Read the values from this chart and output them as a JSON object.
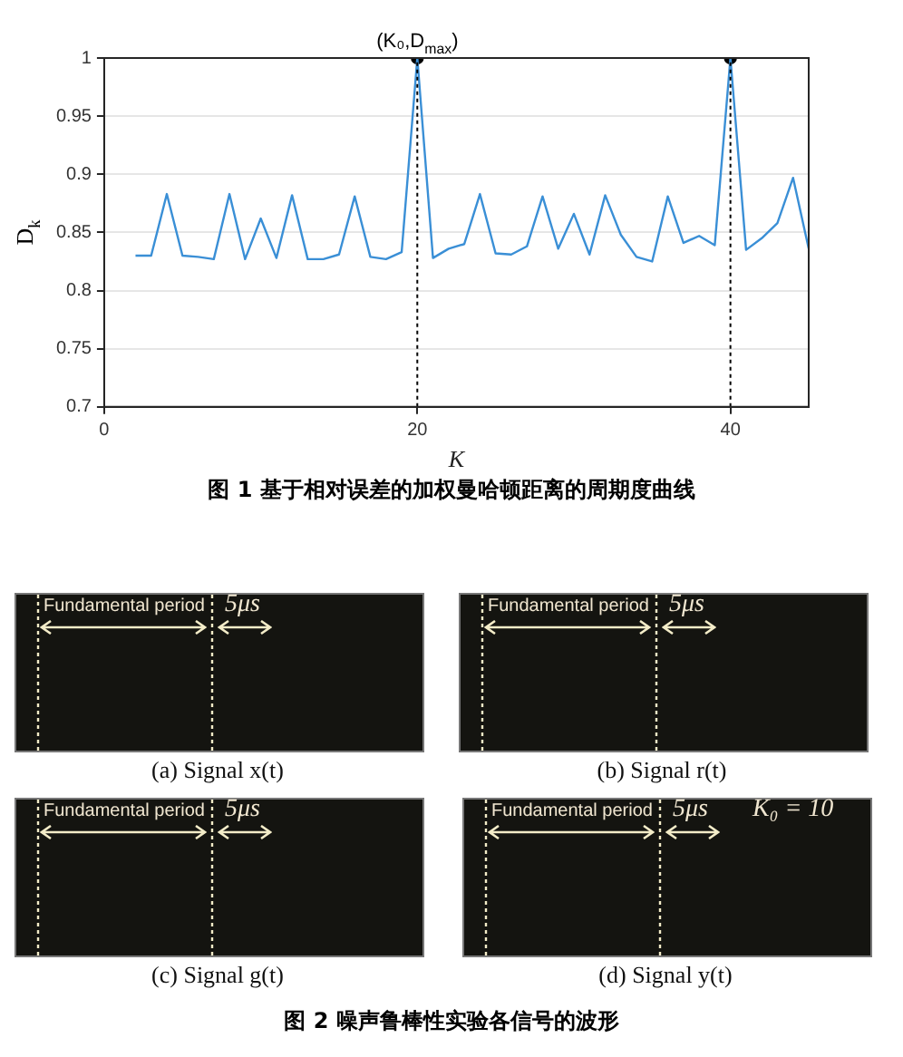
{
  "chart_data": [
    {
      "type": "line",
      "title": "图 1 基于相对误差的加权曼哈顿距离的周期度曲线",
      "xlabel": "K",
      "ylabel": "D$_{k}$",
      "x": [
        2,
        3,
        4,
        5,
        6,
        7,
        8,
        9,
        10,
        11,
        12,
        13,
        14,
        15,
        16,
        17,
        18,
        19,
        20,
        21,
        22,
        23,
        24,
        25,
        26,
        27,
        28,
        29,
        30,
        31,
        32,
        33,
        34,
        35,
        36,
        37,
        38,
        39,
        40,
        41,
        42,
        43,
        44,
        45
      ],
      "series": [
        {
          "color": "#3a8fd6",
          "marker": "none",
          "values": [
            0.83,
            0.83,
            0.883,
            0.83,
            0.829,
            0.827,
            0.883,
            0.827,
            0.862,
            0.828,
            0.882,
            0.827,
            0.827,
            0.831,
            0.881,
            0.829,
            0.827,
            0.833,
            1.0,
            0.828,
            0.836,
            0.84,
            0.883,
            0.832,
            0.831,
            0.838,
            0.881,
            0.836,
            0.866,
            0.831,
            0.882,
            0.848,
            0.829,
            0.825,
            0.881,
            0.841,
            0.847,
            0.839,
            1.0,
            0.835,
            0.845,
            0.858,
            0.897,
            0.836
          ]
        },
        {
          "type": "scatter",
          "color": "#000000",
          "marker": "circle",
          "x": [
            20,
            40
          ],
          "values": [
            1.0,
            1.0
          ]
        }
      ],
      "xlim": [
        0,
        45
      ],
      "xticks": [
        0,
        20,
        40
      ],
      "ylim": [
        0.7,
        1
      ],
      "yticks": [
        0.7,
        0.75,
        0.8,
        0.85,
        0.9,
        0.95,
        1
      ],
      "ref_lines": [
        {
          "axis": "x",
          "value": 20,
          "color": "#000000",
          "line_style": "dotted"
        },
        {
          "axis": "x",
          "value": 40,
          "color": "#000000",
          "line_style": "dotted"
        }
      ],
      "annotations": [
        {
          "text": "(K₀,D$_{max}$)",
          "x": 20,
          "y": 1
        }
      ],
      "grid": "y",
      "legend": false
    },
    {
      "type": "other",
      "title": "图 2 噪声鲁棒性实验各信号的波形",
      "annotations": [
        "Fundamental period",
        "5μs",
        "(a) Signal x(t)",
        "Fundamental period",
        "5μs",
        "(b) Signal r(t)",
        "Fundamental period",
        "5μs",
        "(c) Signal g(t)",
        "Fundamental period",
        "5μs",
        "K₀ = 10",
        "(d) Signal y(t)"
      ]
    }
  ]
}
